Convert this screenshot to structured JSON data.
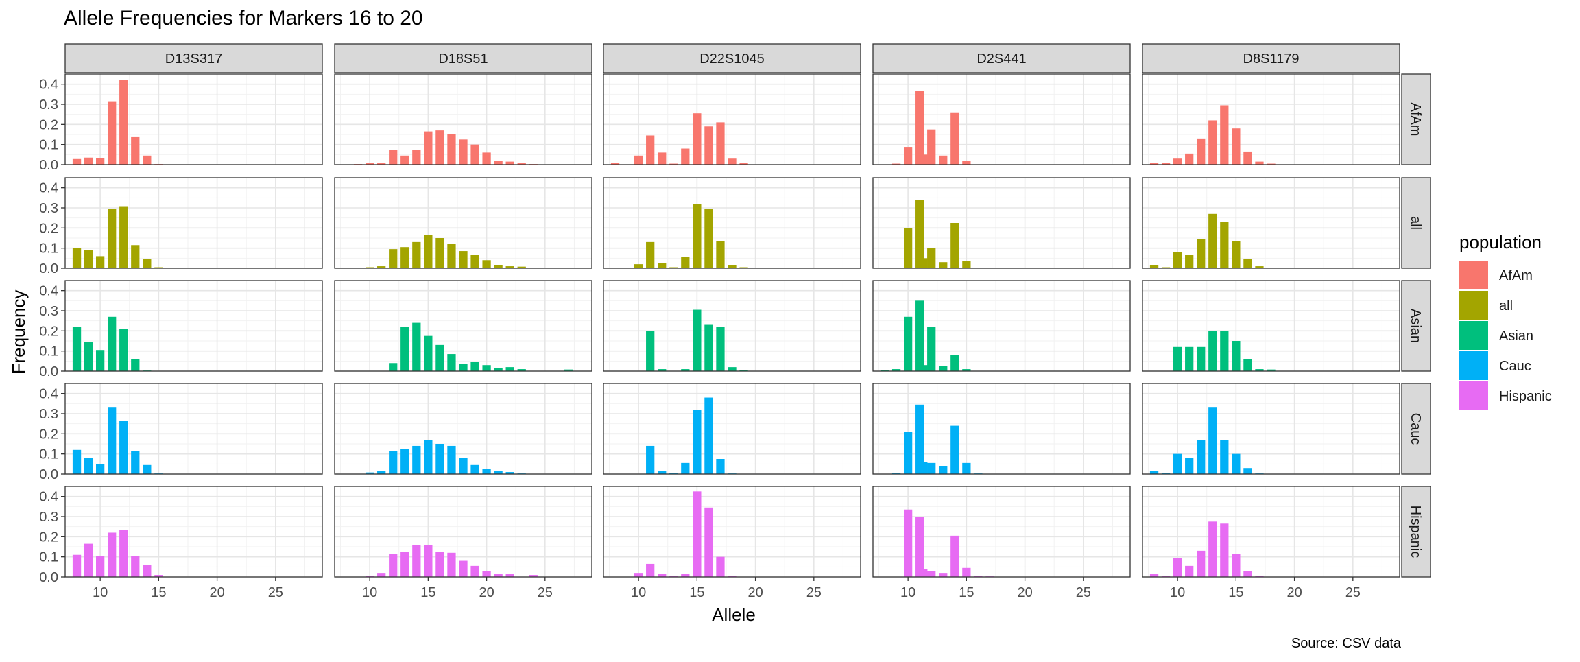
{
  "chart_data": {
    "type": "bar",
    "title": "Allele Frequencies for Markers 16 to 20",
    "xlabel": "Allele",
    "ylabel": "Frequency",
    "caption": "Source: CSV data",
    "xlim": [
      7,
      29
    ],
    "ylim": [
      0,
      0.45
    ],
    "x_ticks": [
      "10",
      "15",
      "20",
      "25"
    ],
    "y_ticks": [
      "0.0",
      "0.1",
      "0.2",
      "0.3",
      "0.4"
    ],
    "legend": {
      "title": "population",
      "position": "right",
      "entries": [
        {
          "name": "AfAm",
          "color": "#F8766D"
        },
        {
          "name": "all",
          "color": "#A3A500"
        },
        {
          "name": "Asian",
          "color": "#00BF7D"
        },
        {
          "name": "Cauc",
          "color": "#00B0F6"
        },
        {
          "name": "Hispanic",
          "color": "#E76BF3"
        }
      ]
    },
    "markers": [
      "D13S317",
      "D18S51",
      "D22S1045",
      "D2S441",
      "D8S1179"
    ],
    "populations": [
      "AfAm",
      "all",
      "Asian",
      "Cauc",
      "Hispanic"
    ],
    "panels": {
      "D13S317": {
        "AfAm": [
          [
            8,
            0.028
          ],
          [
            9,
            0.035
          ],
          [
            10,
            0.033
          ],
          [
            11,
            0.315
          ],
          [
            12,
            0.42
          ],
          [
            13,
            0.14
          ],
          [
            14,
            0.045
          ],
          [
            15,
            0.003
          ]
        ],
        "all": [
          [
            8,
            0.1
          ],
          [
            9,
            0.09
          ],
          [
            10,
            0.06
          ],
          [
            11,
            0.295
          ],
          [
            12,
            0.305
          ],
          [
            13,
            0.115
          ],
          [
            14,
            0.045
          ],
          [
            15,
            0.005
          ]
        ],
        "Asian": [
          [
            8,
            0.22
          ],
          [
            9,
            0.145
          ],
          [
            10,
            0.105
          ],
          [
            11,
            0.27
          ],
          [
            12,
            0.21
          ],
          [
            13,
            0.06
          ],
          [
            14,
            0.003
          ]
        ],
        "Cauc": [
          [
            8,
            0.12
          ],
          [
            9,
            0.08
          ],
          [
            10,
            0.05
          ],
          [
            11,
            0.33
          ],
          [
            12,
            0.265
          ],
          [
            13,
            0.115
          ],
          [
            14,
            0.045
          ],
          [
            15,
            0.003
          ]
        ],
        "Hispanic": [
          [
            8,
            0.11
          ],
          [
            9,
            0.165
          ],
          [
            10,
            0.105
          ],
          [
            11,
            0.22
          ],
          [
            12,
            0.235
          ],
          [
            13,
            0.105
          ],
          [
            14,
            0.06
          ],
          [
            15,
            0.01
          ]
        ]
      },
      "D18S51": {
        "AfAm": [
          [
            9,
            0.003
          ],
          [
            10,
            0.008
          ],
          [
            11,
            0.008
          ],
          [
            12,
            0.075
          ],
          [
            13,
            0.045
          ],
          [
            14,
            0.075
          ],
          [
            15,
            0.165
          ],
          [
            16,
            0.17
          ],
          [
            17,
            0.15
          ],
          [
            18,
            0.125
          ],
          [
            19,
            0.1
          ],
          [
            20,
            0.06
          ],
          [
            21,
            0.02
          ],
          [
            22,
            0.015
          ],
          [
            23,
            0.01
          ],
          [
            24,
            0.003
          ]
        ],
        "all": [
          [
            10,
            0.005
          ],
          [
            11,
            0.01
          ],
          [
            12,
            0.095
          ],
          [
            13,
            0.105
          ],
          [
            14,
            0.13
          ],
          [
            15,
            0.165
          ],
          [
            16,
            0.15
          ],
          [
            17,
            0.12
          ],
          [
            18,
            0.085
          ],
          [
            19,
            0.065
          ],
          [
            20,
            0.04
          ],
          [
            21,
            0.015
          ],
          [
            22,
            0.01
          ],
          [
            23,
            0.008
          ],
          [
            24,
            0.003
          ]
        ],
        "Asian": [
          [
            12,
            0.04
          ],
          [
            13,
            0.22
          ],
          [
            14,
            0.24
          ],
          [
            15,
            0.175
          ],
          [
            16,
            0.13
          ],
          [
            17,
            0.085
          ],
          [
            18,
            0.035
          ],
          [
            19,
            0.045
          ],
          [
            20,
            0.03
          ],
          [
            21,
            0.015
          ],
          [
            22,
            0.02
          ],
          [
            23,
            0.01
          ],
          [
            27,
            0.008
          ]
        ],
        "Cauc": [
          [
            10,
            0.008
          ],
          [
            11,
            0.015
          ],
          [
            12,
            0.115
          ],
          [
            13,
            0.125
          ],
          [
            14,
            0.14
          ],
          [
            15,
            0.17
          ],
          [
            16,
            0.15
          ],
          [
            17,
            0.14
          ],
          [
            18,
            0.08
          ],
          [
            19,
            0.045
          ],
          [
            20,
            0.025
          ],
          [
            21,
            0.015
          ],
          [
            22,
            0.01
          ],
          [
            23,
            0.003
          ]
        ],
        "Hispanic": [
          [
            10,
            0.005
          ],
          [
            11,
            0.02
          ],
          [
            12,
            0.115
          ],
          [
            13,
            0.125
          ],
          [
            14,
            0.16
          ],
          [
            15,
            0.16
          ],
          [
            16,
            0.125
          ],
          [
            17,
            0.12
          ],
          [
            18,
            0.08
          ],
          [
            19,
            0.055
          ],
          [
            20,
            0.03
          ],
          [
            21,
            0.015
          ],
          [
            22,
            0.015
          ],
          [
            24,
            0.01
          ]
        ]
      },
      "D22S1045": {
        "AfAm": [
          [
            8,
            0.008
          ],
          [
            10,
            0.045
          ],
          [
            11,
            0.145
          ],
          [
            12,
            0.06
          ],
          [
            13,
            0.005
          ],
          [
            14,
            0.08
          ],
          [
            15,
            0.255
          ],
          [
            16,
            0.19
          ],
          [
            17,
            0.21
          ],
          [
            18,
            0.03
          ],
          [
            19,
            0.01
          ]
        ],
        "all": [
          [
            8,
            0.003
          ],
          [
            10,
            0.02
          ],
          [
            11,
            0.13
          ],
          [
            12,
            0.025
          ],
          [
            13,
            0.005
          ],
          [
            14,
            0.055
          ],
          [
            15,
            0.32
          ],
          [
            16,
            0.295
          ],
          [
            17,
            0.135
          ],
          [
            18,
            0.015
          ],
          [
            19,
            0.005
          ]
        ],
        "Asian": [
          [
            11,
            0.2
          ],
          [
            12,
            0.01
          ],
          [
            14,
            0.01
          ],
          [
            15,
            0.305
          ],
          [
            16,
            0.23
          ],
          [
            17,
            0.22
          ],
          [
            18,
            0.02
          ],
          [
            19,
            0.005
          ]
        ],
        "Cauc": [
          [
            11,
            0.14
          ],
          [
            12,
            0.015
          ],
          [
            13,
            0.005
          ],
          [
            14,
            0.055
          ],
          [
            15,
            0.32
          ],
          [
            16,
            0.38
          ],
          [
            17,
            0.075
          ],
          [
            18,
            0.003
          ]
        ],
        "Hispanic": [
          [
            10,
            0.02
          ],
          [
            11,
            0.065
          ],
          [
            12,
            0.015
          ],
          [
            13,
            0.005
          ],
          [
            14,
            0.015
          ],
          [
            15,
            0.425
          ],
          [
            16,
            0.345
          ],
          [
            17,
            0.1
          ],
          [
            18,
            0.005
          ]
        ]
      },
      "D2S441": {
        "AfAm": [
          [
            9,
            0.005
          ],
          [
            10,
            0.085
          ],
          [
            11,
            0.365
          ],
          [
            11.3,
            0.05
          ],
          [
            12,
            0.175
          ],
          [
            13,
            0.045
          ],
          [
            14,
            0.26
          ],
          [
            15,
            0.02
          ]
        ],
        "all": [
          [
            9,
            0.003
          ],
          [
            10,
            0.2
          ],
          [
            11,
            0.34
          ],
          [
            11.3,
            0.05
          ],
          [
            12,
            0.1
          ],
          [
            13,
            0.03
          ],
          [
            14,
            0.225
          ],
          [
            15,
            0.035
          ],
          [
            16,
            0.003
          ]
        ],
        "Asian": [
          [
            8,
            0.005
          ],
          [
            9,
            0.01
          ],
          [
            10,
            0.27
          ],
          [
            11,
            0.35
          ],
          [
            11.3,
            0.03
          ],
          [
            12,
            0.22
          ],
          [
            13,
            0.025
          ],
          [
            14,
            0.08
          ],
          [
            15,
            0.01
          ]
        ],
        "Cauc": [
          [
            9,
            0.005
          ],
          [
            10,
            0.21
          ],
          [
            11,
            0.345
          ],
          [
            11.3,
            0.06
          ],
          [
            12,
            0.055
          ],
          [
            13,
            0.04
          ],
          [
            14,
            0.24
          ],
          [
            15,
            0.055
          ],
          [
            16,
            0.003
          ]
        ],
        "Hispanic": [
          [
            10,
            0.335
          ],
          [
            11,
            0.3
          ],
          [
            11.3,
            0.04
          ],
          [
            12,
            0.03
          ],
          [
            13,
            0.02
          ],
          [
            14,
            0.205
          ],
          [
            15,
            0.045
          ],
          [
            16,
            0.005
          ],
          [
            17,
            0.003
          ]
        ]
      },
      "D8S1179": {
        "AfAm": [
          [
            8,
            0.008
          ],
          [
            9,
            0.008
          ],
          [
            10,
            0.03
          ],
          [
            11,
            0.055
          ],
          [
            12,
            0.13
          ],
          [
            13,
            0.22
          ],
          [
            14,
            0.295
          ],
          [
            15,
            0.18
          ],
          [
            16,
            0.065
          ],
          [
            17,
            0.015
          ],
          [
            18,
            0.005
          ]
        ],
        "all": [
          [
            8,
            0.015
          ],
          [
            9,
            0.005
          ],
          [
            10,
            0.08
          ],
          [
            11,
            0.065
          ],
          [
            12,
            0.145
          ],
          [
            13,
            0.27
          ],
          [
            14,
            0.23
          ],
          [
            15,
            0.135
          ],
          [
            16,
            0.045
          ],
          [
            17,
            0.01
          ],
          [
            18,
            0.003
          ]
        ],
        "Asian": [
          [
            10,
            0.12
          ],
          [
            11,
            0.12
          ],
          [
            12,
            0.12
          ],
          [
            13,
            0.2
          ],
          [
            14,
            0.2
          ],
          [
            15,
            0.15
          ],
          [
            16,
            0.06
          ],
          [
            17,
            0.01
          ],
          [
            18,
            0.008
          ]
        ],
        "Cauc": [
          [
            8,
            0.015
          ],
          [
            9,
            0.005
          ],
          [
            10,
            0.1
          ],
          [
            11,
            0.08
          ],
          [
            12,
            0.17
          ],
          [
            13,
            0.33
          ],
          [
            14,
            0.17
          ],
          [
            15,
            0.1
          ],
          [
            16,
            0.03
          ],
          [
            17,
            0.003
          ]
        ],
        "Hispanic": [
          [
            8,
            0.015
          ],
          [
            9,
            0.005
          ],
          [
            10,
            0.095
          ],
          [
            11,
            0.055
          ],
          [
            12,
            0.13
          ],
          [
            13,
            0.275
          ],
          [
            14,
            0.265
          ],
          [
            15,
            0.115
          ],
          [
            16,
            0.03
          ],
          [
            17,
            0.005
          ]
        ]
      }
    }
  }
}
